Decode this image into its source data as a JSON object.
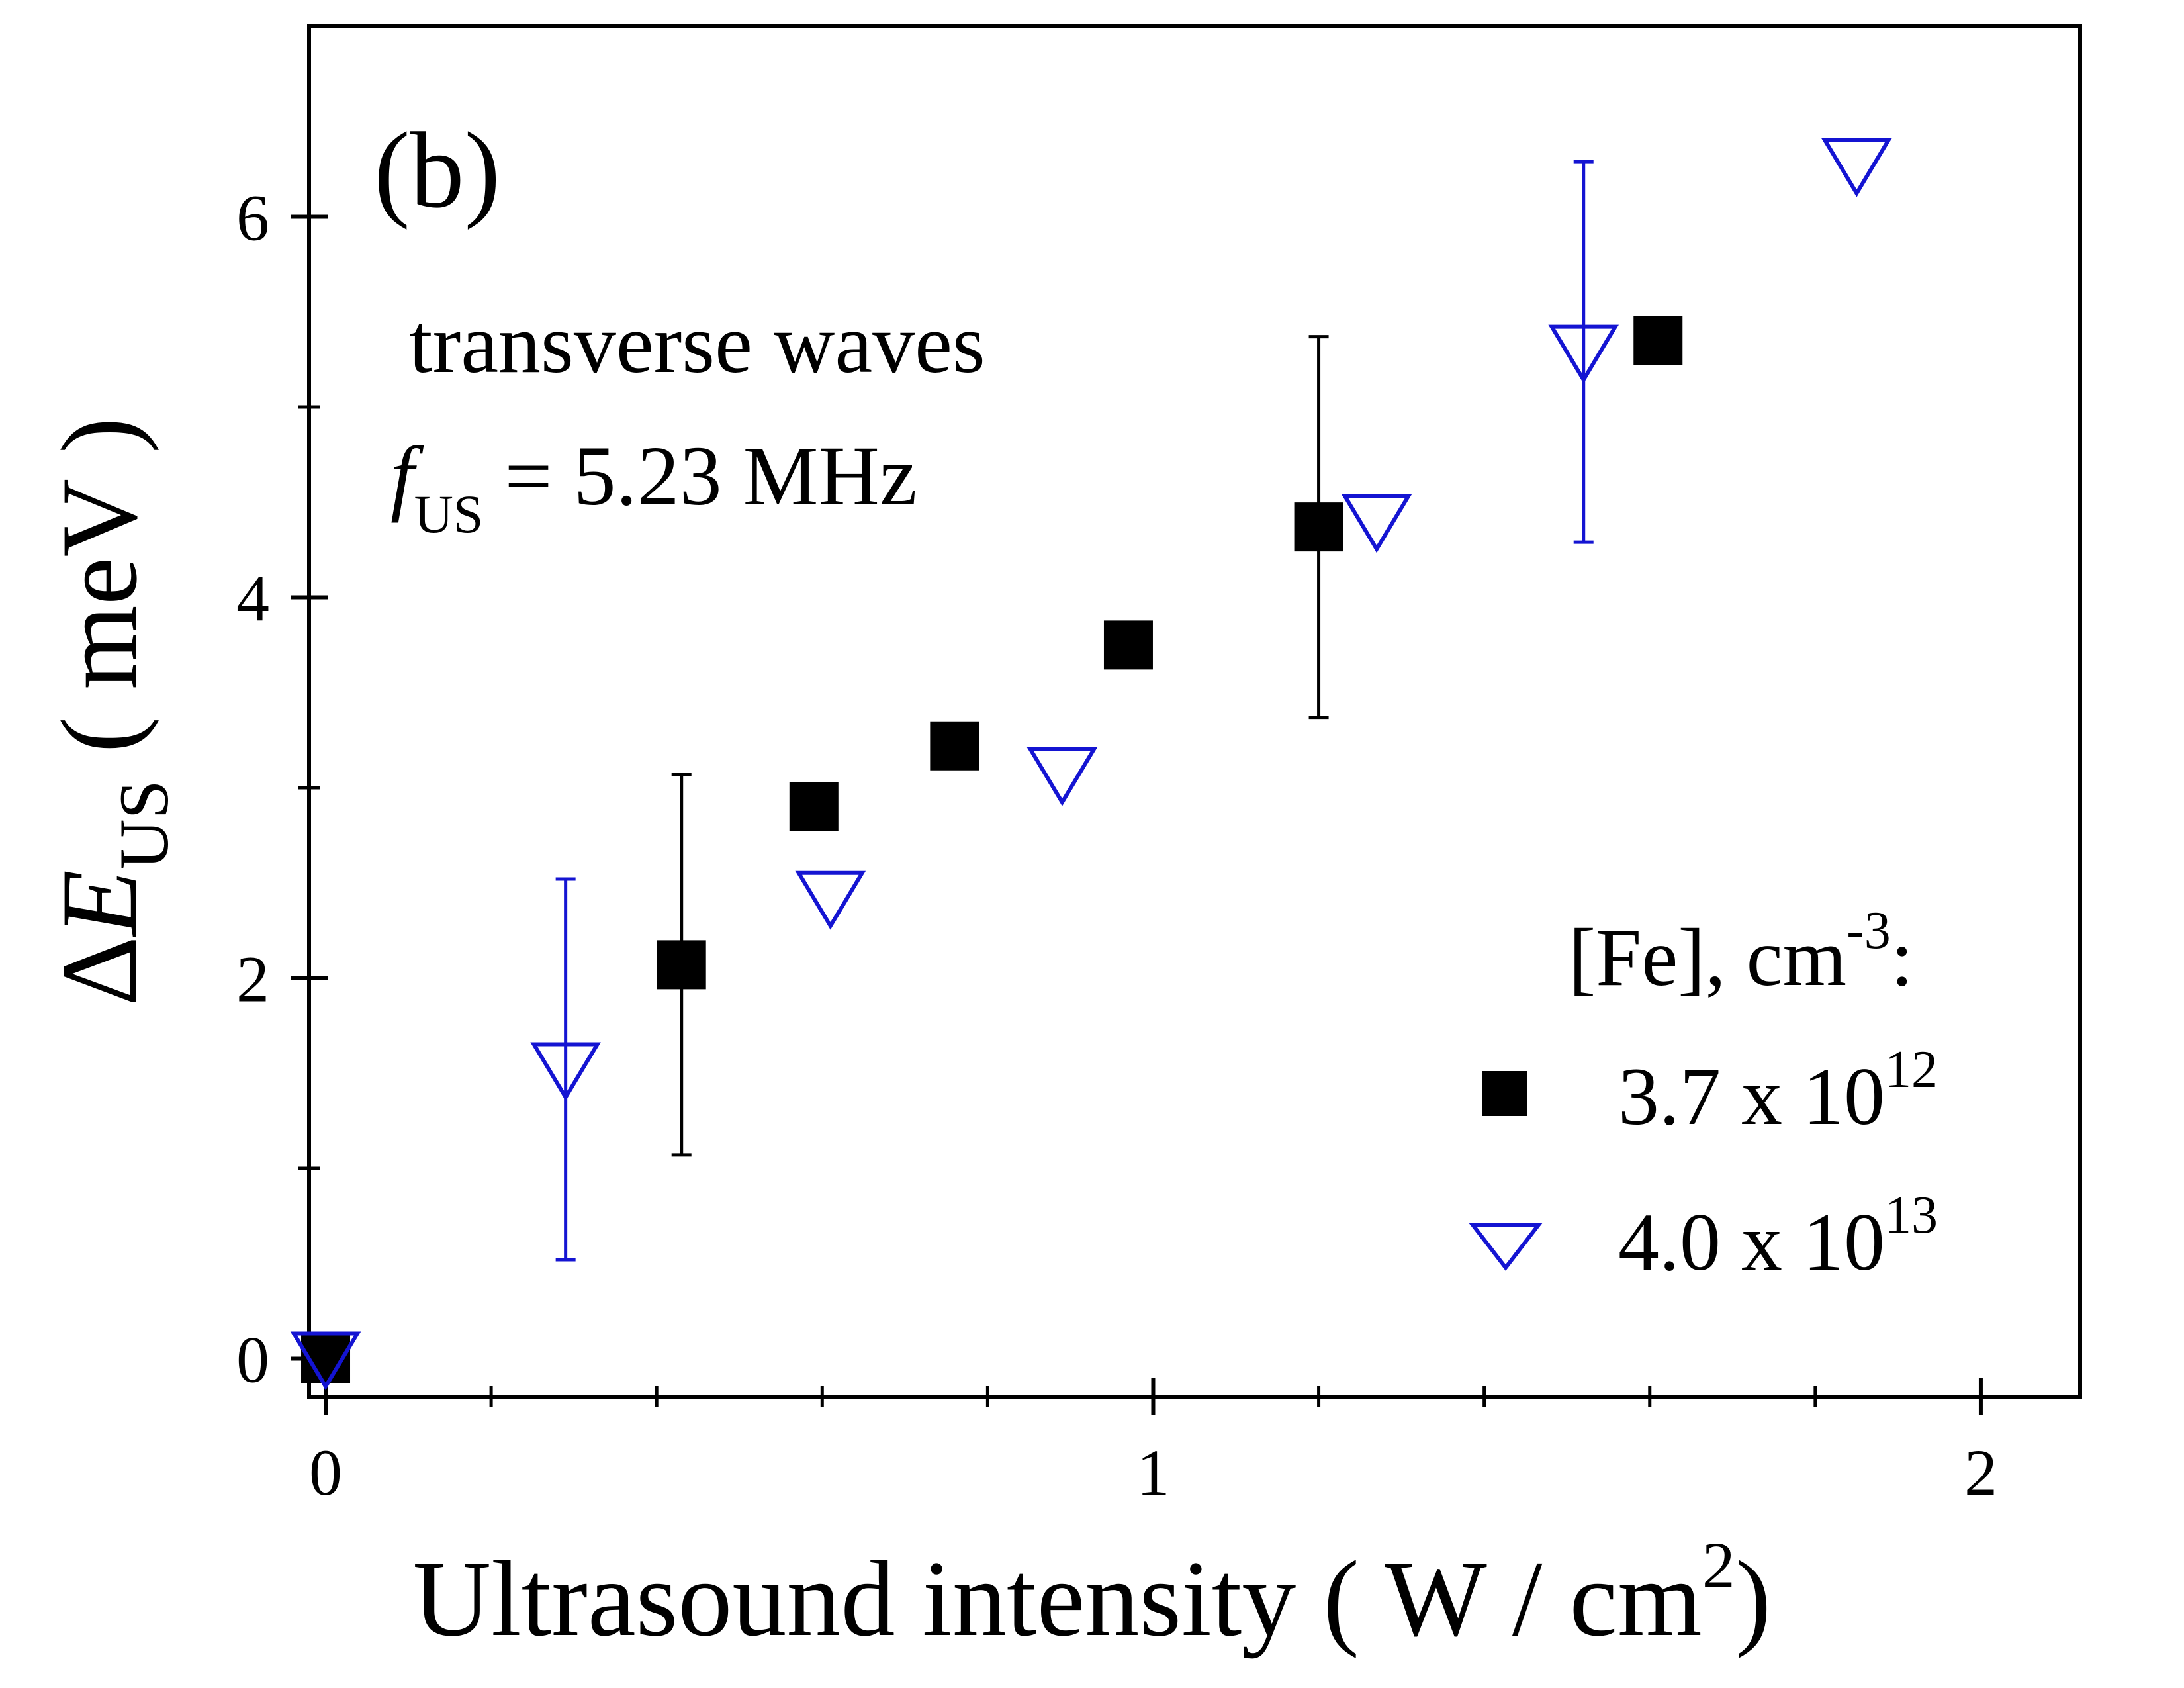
{
  "chart_data": {
    "type": "scatter",
    "panel_label": "(b)",
    "xlabel": "Ultrasound intensity ( W / cm²)",
    "xlabel_parts": {
      "main": "Ultrasound intensity ( W / cm",
      "sup": "2",
      "close": ")"
    },
    "ylabel": "ΔE_US ( meV )",
    "ylabel_parts": {
      "delta": "Δ",
      "var": "E",
      "sub": "US",
      "unit": " ( meV )"
    },
    "xlim": [
      -0.02,
      2.12
    ],
    "ylim": [
      -0.2,
      7.0
    ],
    "x_ticks": [
      0,
      1,
      2
    ],
    "x_tick_labels": [
      "0",
      "1",
      "2"
    ],
    "x_minor_ticks": [
      0.2,
      0.4,
      0.6,
      0.8,
      1.2,
      1.4,
      1.6,
      1.8
    ],
    "y_ticks": [
      0,
      2,
      4,
      6
    ],
    "y_tick_labels": [
      "0",
      "2",
      "4",
      "6"
    ],
    "y_minor_ticks": [
      1,
      3,
      5
    ],
    "grid": false,
    "annotations": {
      "line1": "transverse waves",
      "line2_var": "f",
      "line2_sub": "US",
      "line2_rest": " = 5.23 MHz"
    },
    "legend": {
      "title_main": "[Fe], cm",
      "title_sup": "-3",
      "title_end": ":",
      "placement": "bottom-right"
    },
    "series": [
      {
        "name": "3.7 x 10^12",
        "label_main": "3.7 x 10",
        "label_sup": "12",
        "marker": "filled-square",
        "color": "#000000",
        "points": [
          {
            "x": 0.0,
            "y": 0.0
          },
          {
            "x": 0.43,
            "y": 2.07,
            "err": 1.0
          },
          {
            "x": 0.59,
            "y": 2.9
          },
          {
            "x": 0.76,
            "y": 3.22
          },
          {
            "x": 0.97,
            "y": 3.75
          },
          {
            "x": 1.2,
            "y": 4.37,
            "err": 1.0
          },
          {
            "x": 1.61,
            "y": 5.35
          }
        ]
      },
      {
        "name": "4.0 x 10^13",
        "label_main": "4.0 x 10",
        "label_sup": "13",
        "marker": "open-down-triangle",
        "color": "#1414d2",
        "points": [
          {
            "x": 0.0,
            "y": 0.0
          },
          {
            "x": 0.29,
            "y": 1.52,
            "err": 1.0
          },
          {
            "x": 0.61,
            "y": 2.42
          },
          {
            "x": 0.89,
            "y": 3.07
          },
          {
            "x": 1.27,
            "y": 4.4
          },
          {
            "x": 1.52,
            "y": 5.29,
            "err": 1.0
          },
          {
            "x": 1.85,
            "y": 6.27
          }
        ]
      }
    ]
  }
}
